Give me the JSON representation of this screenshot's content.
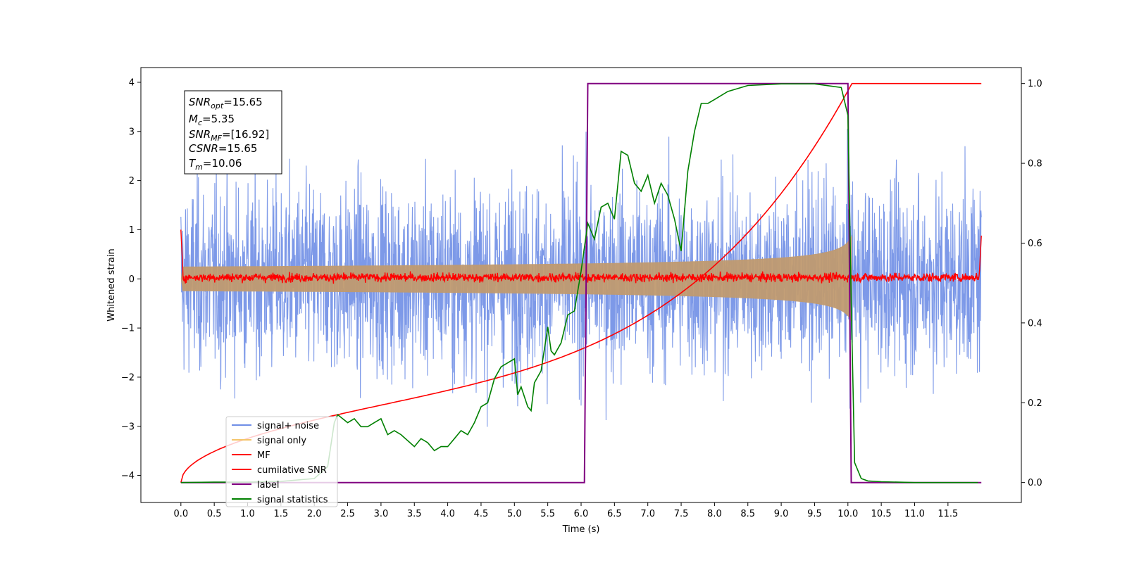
{
  "chart_data": {
    "type": "line",
    "xlabel": "Time (s)",
    "ylabel": "Whitened strain",
    "xlim": [
      -0.6,
      12.6
    ],
    "ylim": [
      -4.55,
      4.3
    ],
    "y2lim": [
      -0.05,
      1.04
    ],
    "grid": false,
    "legend_position": "lower-left",
    "x_ticks": [
      "0.0",
      "0.5",
      "1.0",
      "1.5",
      "2.0",
      "2.5",
      "3.0",
      "3.5",
      "4.0",
      "4.5",
      "5.0",
      "5.5",
      "6.0",
      "6.5",
      "7.0",
      "7.5",
      "8.0",
      "8.5",
      "9.0",
      "9.5",
      "10.0",
      "10.5",
      "11.0",
      "11.5"
    ],
    "y_ticks": [
      "4",
      "3",
      "2",
      "1",
      "0",
      "−1",
      "−2",
      "−3",
      "−4"
    ],
    "y2_ticks": [
      "1.0",
      "0.8",
      "0.6",
      "0.4",
      "0.2",
      "0.0"
    ],
    "info_box": {
      "snr_opt": {
        "main": "SNR",
        "sub": "opt",
        "value": "=15.65"
      },
      "mc": {
        "main": "M",
        "sub": "c",
        "value": "=5.35"
      },
      "snr_mf": {
        "main": "SNR",
        "sub": "MF",
        "value": "=[16.92]"
      },
      "csnr": {
        "main": "CSNR",
        "value": "=15.65"
      },
      "tm": {
        "main": "T",
        "sub": "m",
        "value": "=10.06"
      }
    },
    "series": [
      {
        "name": "signal+ noise",
        "color": "#6f8ee6",
        "axis": "left",
        "description": "whitened noise plus signal, range approx ±4"
      },
      {
        "name": "signal only",
        "color": "#f4c56b",
        "axis": "left",
        "chirp_start": 4.5,
        "chirp_end": 10.06,
        "amplitude_end": 0.95
      },
      {
        "name": "MF",
        "color": "#ff0000",
        "axis": "left",
        "description": "matched filter output around 0, ends near 1.0 at both edges"
      },
      {
        "name": "cumilative SNR",
        "color": "#ff0000",
        "axis": "right",
        "x": [
          0.0,
          0.05,
          1,
          2,
          3,
          4,
          5,
          6,
          7,
          8,
          8.5,
          9,
          9.5,
          9.8,
          10.0,
          10.06,
          10.1,
          12.0
        ],
        "y": [
          0.0,
          0.02,
          0.09,
          0.14,
          0.19,
          0.24,
          0.29,
          0.34,
          0.41,
          0.51,
          0.58,
          0.67,
          0.79,
          0.89,
          0.97,
          1.0,
          1.0,
          1.0
        ]
      },
      {
        "name": "label",
        "color": "#800080",
        "axis": "right",
        "x": [
          0.0,
          6.05,
          6.1,
          10.0,
          10.05,
          12.0
        ],
        "y": [
          0.0,
          0.0,
          1.0,
          1.0,
          0.0,
          0.0
        ]
      },
      {
        "name": "signal statistics",
        "color": "#008000",
        "axis": "right",
        "x": [
          0.0,
          0.5,
          1.0,
          1.5,
          2.0,
          2.2,
          2.3,
          2.35,
          2.5,
          2.6,
          2.7,
          2.8,
          2.9,
          3.0,
          3.1,
          3.2,
          3.3,
          3.5,
          3.6,
          3.7,
          3.8,
          3.9,
          4.0,
          4.1,
          4.2,
          4.3,
          4.4,
          4.5,
          4.6,
          4.7,
          4.8,
          4.9,
          5.0,
          5.05,
          5.1,
          5.2,
          5.25,
          5.3,
          5.4,
          5.5,
          5.55,
          5.6,
          5.7,
          5.8,
          5.9,
          6.0,
          6.1,
          6.2,
          6.3,
          6.4,
          6.5,
          6.6,
          6.7,
          6.8,
          6.9,
          7.0,
          7.1,
          7.2,
          7.3,
          7.4,
          7.5,
          7.6,
          7.7,
          7.8,
          7.9,
          8.0,
          8.2,
          8.5,
          9.0,
          9.5,
          9.9,
          10.0,
          10.05,
          10.1,
          10.2,
          10.3,
          10.5,
          11.0,
          11.5,
          11.95
        ],
        "y": [
          0.0,
          0.001,
          0.001,
          0.003,
          0.01,
          0.04,
          0.15,
          0.17,
          0.15,
          0.16,
          0.14,
          0.14,
          0.15,
          0.16,
          0.12,
          0.13,
          0.12,
          0.09,
          0.11,
          0.1,
          0.08,
          0.09,
          0.09,
          0.11,
          0.13,
          0.12,
          0.15,
          0.19,
          0.2,
          0.26,
          0.29,
          0.3,
          0.31,
          0.22,
          0.24,
          0.19,
          0.18,
          0.25,
          0.28,
          0.39,
          0.33,
          0.32,
          0.35,
          0.42,
          0.43,
          0.53,
          0.65,
          0.61,
          0.69,
          0.7,
          0.66,
          0.83,
          0.82,
          0.75,
          0.73,
          0.77,
          0.7,
          0.75,
          0.72,
          0.66,
          0.58,
          0.78,
          0.88,
          0.95,
          0.95,
          0.96,
          0.98,
          0.995,
          0.999,
          0.999,
          0.99,
          0.92,
          0.45,
          0.05,
          0.01,
          0.004,
          0.002,
          0.0,
          0.0,
          0.0
        ]
      }
    ]
  }
}
